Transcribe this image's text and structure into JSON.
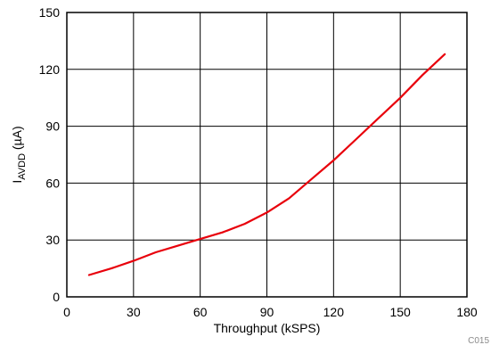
{
  "chart_data": {
    "type": "line",
    "xlabel": "Throughput (kSPS)",
    "ylabel": {
      "main": "I",
      "subscript": "AVDD",
      "unit": " (µA)"
    },
    "xlim": [
      0,
      180
    ],
    "ylim": [
      0,
      150
    ],
    "xticks": [
      "0",
      "30",
      "60",
      "90",
      "120",
      "150",
      "180"
    ],
    "yticks": [
      "0",
      "30",
      "60",
      "90",
      "120",
      "150"
    ],
    "grid": true,
    "series": [
      {
        "color": "#e8000b",
        "x": [
          10,
          20,
          30,
          40,
          50,
          60,
          70,
          80,
          90,
          100,
          110,
          120,
          130,
          140,
          150,
          160,
          170
        ],
        "y": [
          11.5,
          15,
          19,
          23.5,
          27,
          30.5,
          34,
          38.5,
          44.5,
          52,
          62,
          72,
          83,
          94,
          105,
          117,
          128
        ]
      }
    ]
  },
  "figure_id": "C015"
}
